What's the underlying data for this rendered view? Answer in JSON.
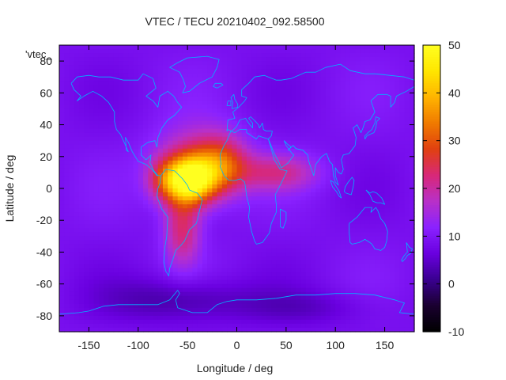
{
  "chart_data": {
    "type": "heatmap",
    "title": "VTEC / TECU 20210402_092.58500",
    "xlabel": "Longitude / deg",
    "ylabel": "Latitude / deg",
    "stray_label": "'vtec_",
    "xlim": [
      -180,
      180
    ],
    "ylim": [
      -90,
      90
    ],
    "x_ticks": [
      -150,
      -100,
      -50,
      0,
      50,
      100,
      150
    ],
    "y_ticks": [
      -80,
      -60,
      -40,
      -20,
      0,
      20,
      40,
      60,
      80
    ],
    "colorbar": {
      "min": -10,
      "max": 50,
      "ticks": [
        -10,
        0,
        10,
        20,
        30,
        40,
        50
      ],
      "palette": [
        "#000000",
        "#1a0030",
        "#3a0090",
        "#6a00e0",
        "#8a22ff",
        "#b830c8",
        "#d82878",
        "#e04010",
        "#f07a00",
        "#ffb400",
        "#ffe600",
        "#ffff20"
      ]
    },
    "background_vtec": 9,
    "anomalies": [
      {
        "lon": -48,
        "lat": 5,
        "sigma_lon": 18,
        "sigma_lat": 10,
        "amplitude": 38
      },
      {
        "lon": -40,
        "lat": 15,
        "sigma_lon": 30,
        "sigma_lat": 16,
        "amplitude": 14
      },
      {
        "lon": -55,
        "lat": -25,
        "sigma_lon": 13,
        "sigma_lat": 16,
        "amplitude": 14
      },
      {
        "lon": -15,
        "lat": 15,
        "sigma_lon": 18,
        "sigma_lat": 12,
        "amplitude": 14
      },
      {
        "lon": 40,
        "lat": 10,
        "sigma_lon": 30,
        "sigma_lat": 8,
        "amplitude": 11
      },
      {
        "lon": -75,
        "lat": 5,
        "sigma_lon": 12,
        "sigma_lat": 9,
        "amplitude": 8
      },
      {
        "lon": -60,
        "lat": -70,
        "sigma_lon": 50,
        "sigma_lat": 10,
        "amplitude": -7
      },
      {
        "lon": 70,
        "lat": -75,
        "sigma_lon": 50,
        "sigma_lat": 8,
        "amplitude": -4
      }
    ],
    "coastline_color": "#00b4ff"
  }
}
